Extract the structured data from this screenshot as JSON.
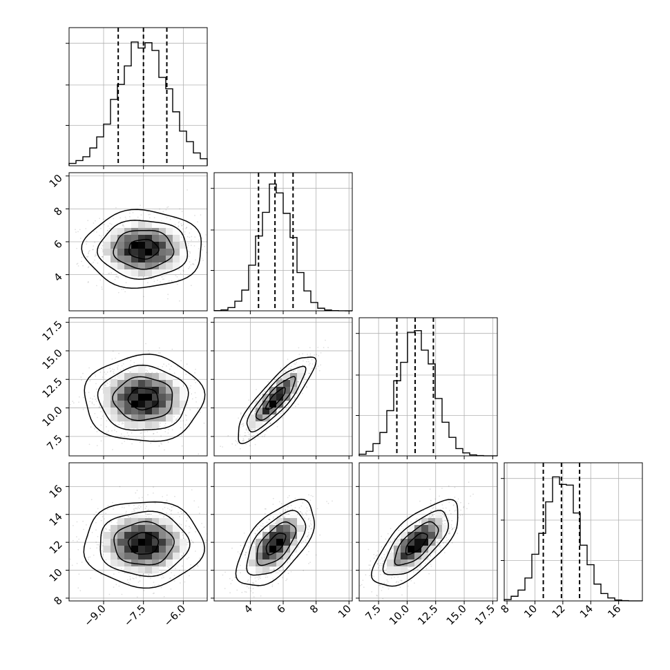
{
  "chart_data": {
    "type": "corner",
    "title": "",
    "grid": true,
    "n_params": 4,
    "params": [
      {
        "mean": -7.5,
        "sd": 0.95,
        "range": [
          -10.3,
          -5.1
        ],
        "ticks": [
          -9.0,
          -7.5,
          -6.0
        ],
        "tick_labels": [
          "−9.0",
          "−7.5",
          "−6.0"
        ],
        "quantiles": [
          -8.45,
          -7.5,
          -6.62
        ],
        "hist_ticks": [
          0.0,
          0.33,
          0.66,
          1.0
        ]
      },
      {
        "mean": 5.55,
        "sd": 1.0,
        "range": [
          1.8,
          10.2
        ],
        "ticks": [
          4,
          6,
          8,
          10
        ],
        "tick_labels": [
          "4",
          "6",
          "8",
          "10"
        ],
        "quantiles": [
          4.5,
          5.5,
          6.6
        ],
        "hist_ticks": [
          0.0,
          0.33,
          0.66,
          1.0
        ]
      },
      {
        "mean": 10.8,
        "sd": 1.6,
        "range": [
          5.8,
          17.9
        ],
        "ticks": [
          7.5,
          10.0,
          12.5,
          15.0,
          17.5
        ],
        "tick_labels": [
          "7.5",
          "10.0",
          "12.5",
          "15.0",
          "17.5"
        ],
        "quantiles": [
          9.1,
          10.7,
          12.3
        ],
        "hist_ticks": [
          0.0,
          0.33,
          0.66,
          1.0
        ]
      },
      {
        "mean": 11.9,
        "sd": 1.3,
        "range": [
          7.8,
          17.7
        ],
        "ticks": [
          8,
          10,
          12,
          14,
          16
        ],
        "tick_labels": [
          "8",
          "10",
          "12",
          "14",
          "16"
        ],
        "quantiles": [
          10.6,
          11.9,
          13.2
        ],
        "hist_ticks": [
          0.0,
          0.33,
          0.66,
          1.0
        ]
      }
    ],
    "correlations": [
      [
        1.0,
        0.0,
        0.0,
        0.0
      ],
      [
        0.0,
        1.0,
        0.85,
        0.6
      ],
      [
        0.0,
        0.85,
        1.0,
        0.7
      ],
      [
        0.0,
        0.6,
        0.7,
        1.0
      ]
    ],
    "contour_levels_sigma": [
      0.5,
      1.0,
      1.5,
      2.0
    ]
  }
}
